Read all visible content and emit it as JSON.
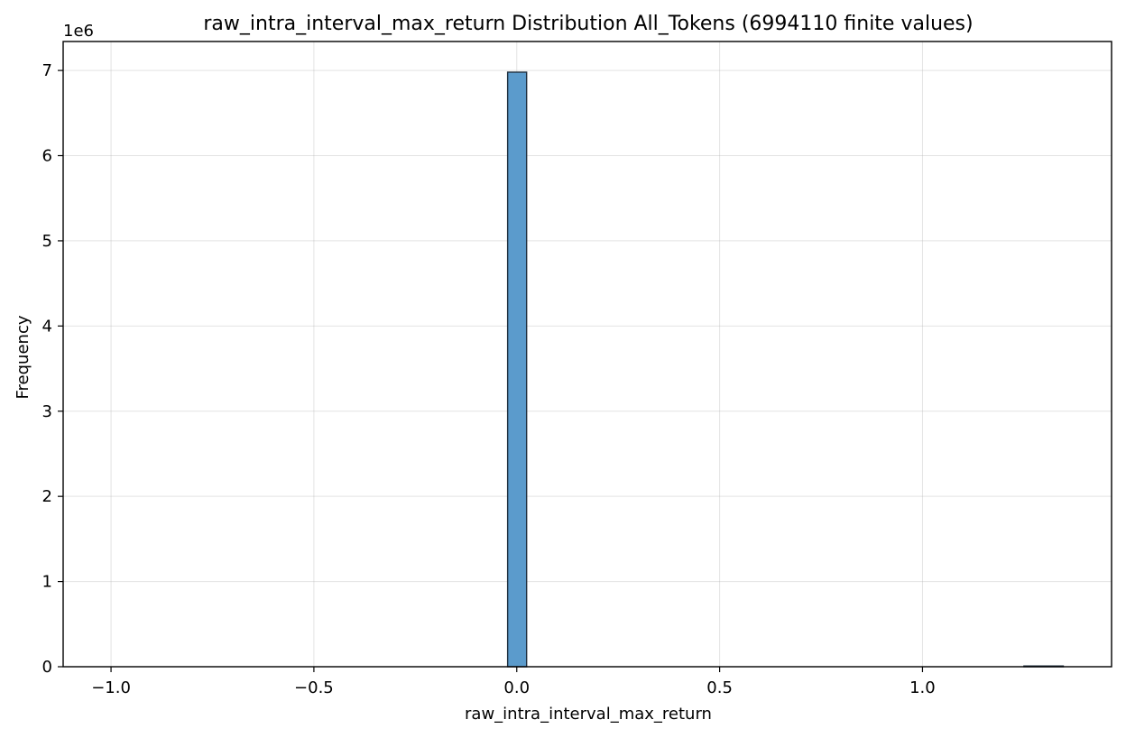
{
  "chart_data": {
    "type": "bar",
    "title": "raw_intra_interval_max_return Distribution All_Tokens (6994110 finite values)",
    "xlabel": "raw_intra_interval_max_return",
    "ylabel": "Frequency",
    "y_offset_label": "1e6",
    "xlim": [
      -1.118,
      1.466
    ],
    "ylim": [
      0,
      7340000
    ],
    "x_ticks": [
      -1.0,
      -0.5,
      0.0,
      0.5,
      1.0
    ],
    "x_tick_labels": [
      "−1.0",
      "−0.5",
      "0.0",
      "0.5",
      "1.0"
    ],
    "y_ticks": [
      0,
      1000000,
      2000000,
      3000000,
      4000000,
      5000000,
      6000000,
      7000000
    ],
    "y_tick_labels": [
      "0",
      "1",
      "2",
      "3",
      "4",
      "5",
      "6",
      "7"
    ],
    "grid": true,
    "legend": "none",
    "bars": [
      {
        "x0": -0.0225,
        "x1": 0.0243,
        "count": 6980000
      },
      {
        "x0": 1.25,
        "x1": 1.347,
        "count": 1
      }
    ],
    "colors": {
      "bar_fill": "#5b9bcc",
      "bar_edge": "#1f2f3f"
    }
  }
}
